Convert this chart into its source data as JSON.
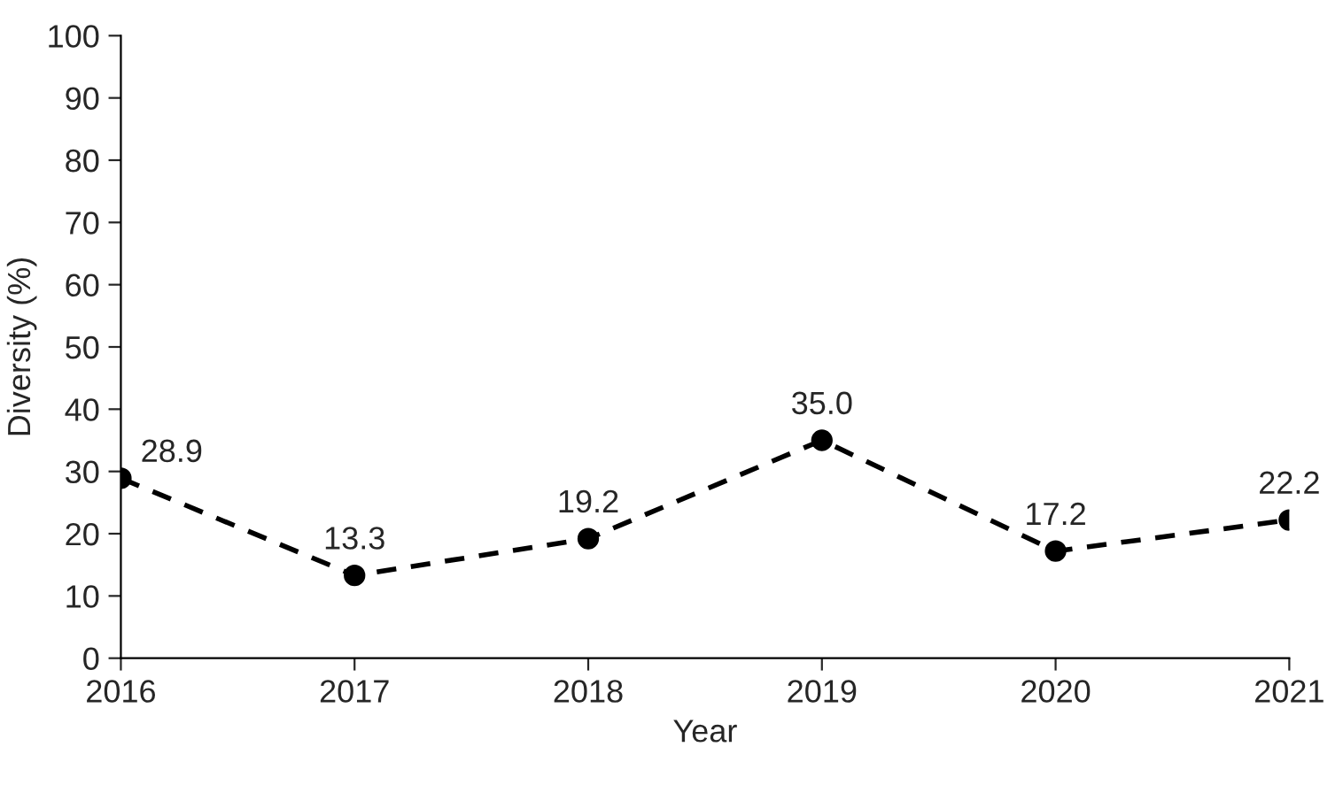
{
  "chart_data": {
    "type": "line",
    "xlabel": "Year",
    "ylabel": "Diversity (%)",
    "x": [
      2016,
      2017,
      2018,
      2019,
      2020,
      2021
    ],
    "series": [
      {
        "color": "#000000",
        "values": [
          28.9,
          13.3,
          19.2,
          35.0,
          17.2,
          22.2
        ]
      }
    ],
    "xlim": [
      2016,
      2021
    ],
    "xticks": [
      2016,
      2017,
      2018,
      2019,
      2020,
      2021
    ],
    "ylim": [
      0,
      100
    ],
    "yticks": [
      0,
      10,
      20,
      30,
      40,
      50,
      60,
      70,
      80,
      90,
      100
    ],
    "value_labels": [
      "28.9",
      "13.3",
      "19.2",
      "35.0",
      "17.2",
      "22.2"
    ],
    "marker": "circle",
    "line_style": "dashed",
    "grid": false,
    "legend": false
  }
}
